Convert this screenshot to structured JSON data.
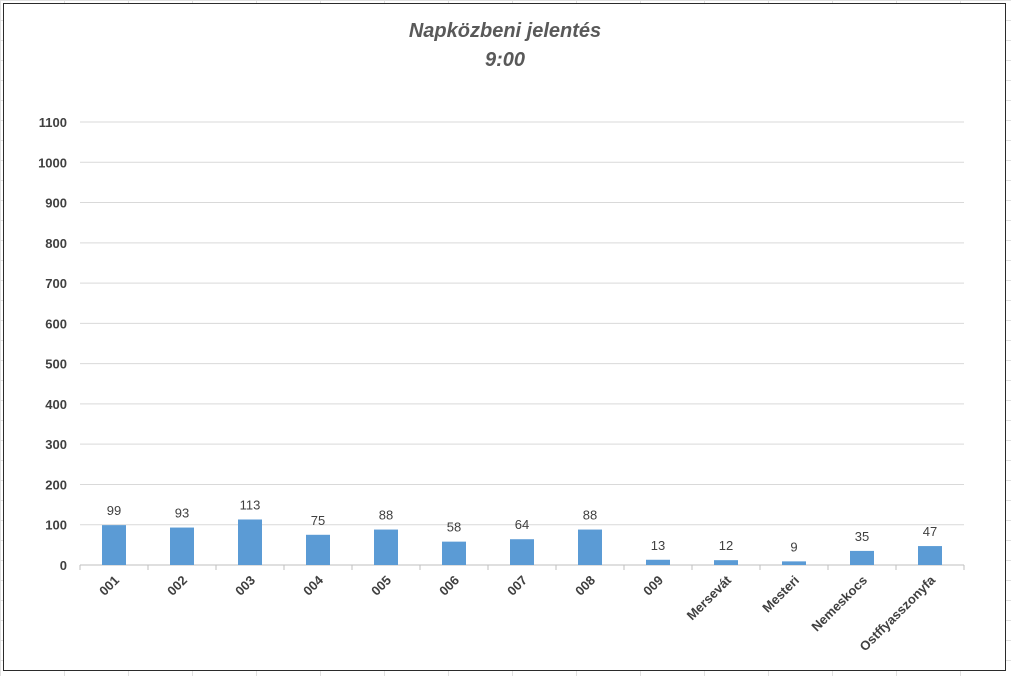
{
  "colors": {
    "bar": "#5b9bd5",
    "text": "#404040",
    "title": "#595959",
    "grid": "#d9d9d9"
  },
  "chart_data": {
    "type": "bar",
    "title": "Napközbeni jelentés",
    "subtitle": "9:00",
    "xlabel": "",
    "ylabel": "",
    "ylim": [
      0,
      1100
    ],
    "ystep": 100,
    "grid": true,
    "legend": "none",
    "categories": [
      "001",
      "002",
      "003",
      "004",
      "005",
      "006",
      "007",
      "008",
      "009",
      "Mersevát",
      "Mesteri",
      "Nemeskocs",
      "Ostffyasszonyfa"
    ],
    "values": [
      99,
      93,
      113,
      75,
      88,
      58,
      64,
      88,
      13,
      12,
      9,
      35,
      47
    ]
  }
}
